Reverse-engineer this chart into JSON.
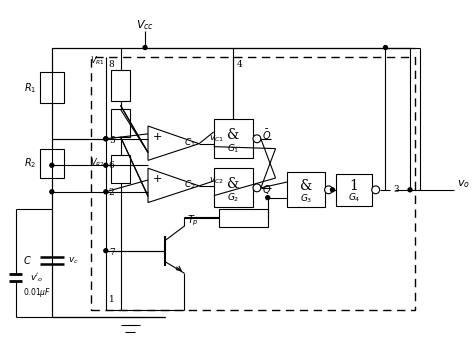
{
  "bg_color": "#ffffff",
  "lw": 0.8,
  "figsize": [
    4.74,
    3.6
  ],
  "dpi": 100
}
